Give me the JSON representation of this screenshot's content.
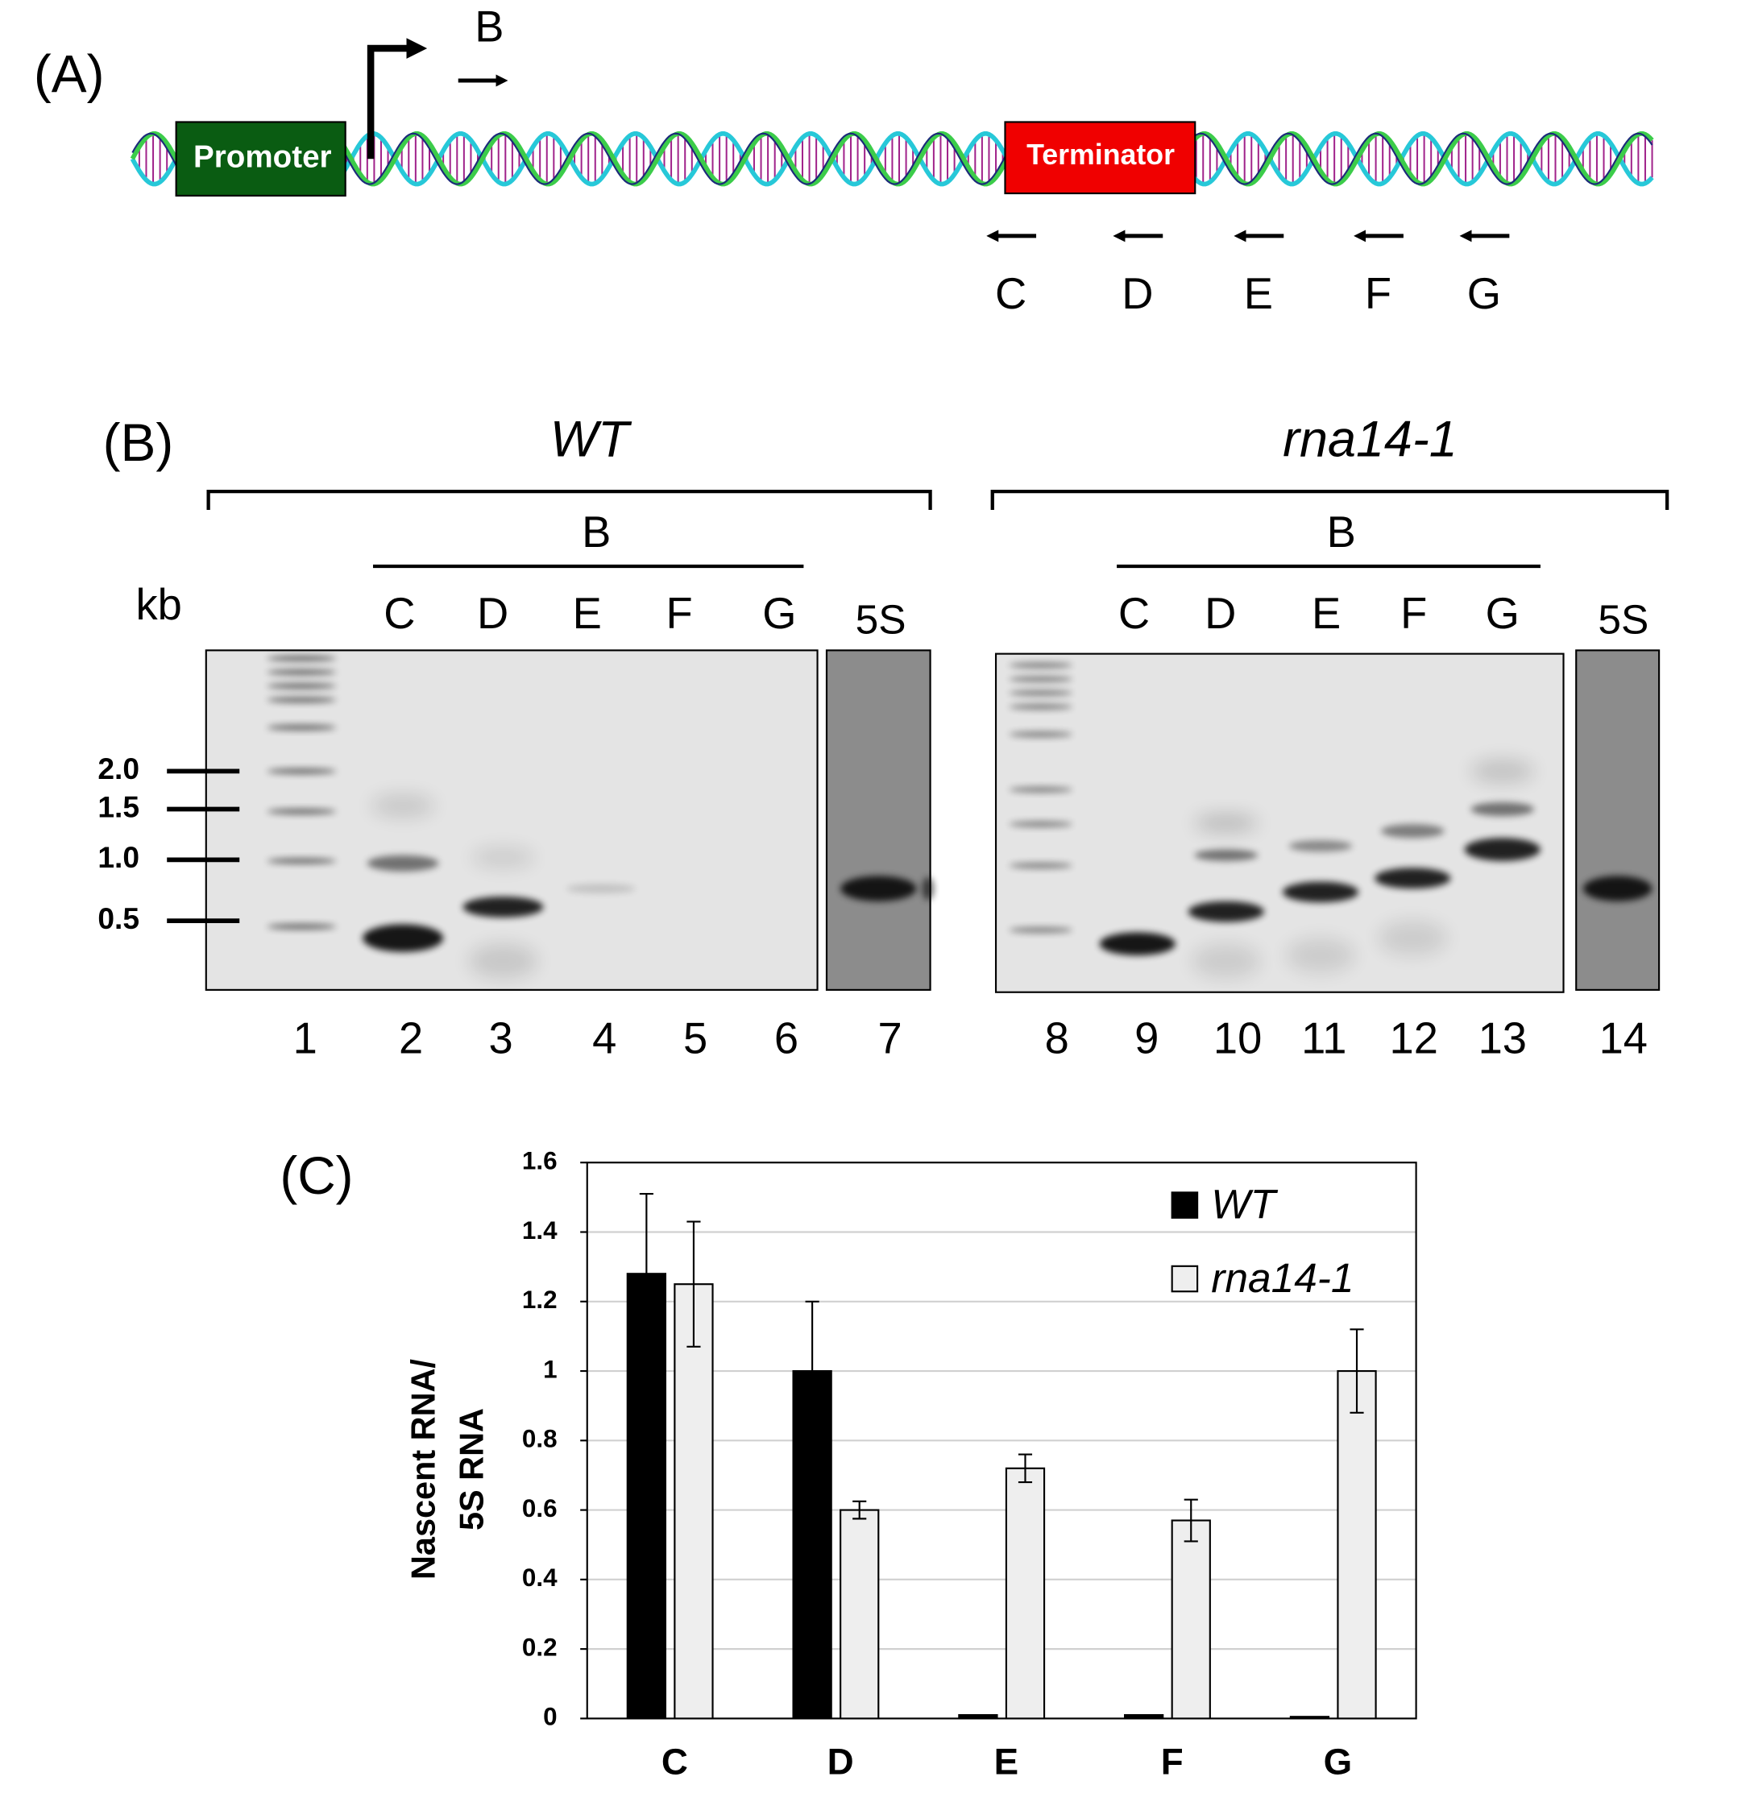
{
  "panel_a": {
    "label": "(A)",
    "promoter": "Promoter",
    "terminator": "Terminator",
    "primer_forward": "B",
    "primers_reverse": [
      "C",
      "D",
      "E",
      "F",
      "G"
    ]
  },
  "panel_b": {
    "label": "(B)",
    "size_unit": "kb",
    "sizes": [
      "2.0",
      "1.5",
      "1.0",
      "0.5"
    ],
    "groups": [
      {
        "name": "WT",
        "primer_header": "B",
        "primers": [
          "C",
          "D",
          "E",
          "F",
          "G"
        ],
        "control": "5S"
      },
      {
        "name": "rna14-1",
        "primer_header": "B",
        "primers": [
          "C",
          "D",
          "E",
          "F",
          "G"
        ],
        "control": "5S"
      }
    ],
    "lanes": [
      "1",
      "2",
      "3",
      "4",
      "5",
      "6",
      "7",
      "8",
      "9",
      "10",
      "11",
      "12",
      "13",
      "14"
    ]
  },
  "chart_data": {
    "type": "bar",
    "label": "(C)",
    "ylabel_lines": [
      "Nascent RNA/",
      "5S RNA"
    ],
    "categories": [
      "C",
      "D",
      "E",
      "F",
      "G"
    ],
    "series": [
      {
        "name": "WT",
        "color": "#000000",
        "values": [
          1.28,
          1.0,
          0.01,
          0.01,
          0.005
        ],
        "errors": [
          0.23,
          0.2,
          null,
          null,
          null
        ]
      },
      {
        "name": "rna14-1",
        "color": "#eeeeee",
        "values": [
          1.25,
          0.6,
          0.72,
          0.57,
          1.0
        ],
        "errors": [
          0.18,
          0.025,
          0.04,
          0.06,
          0.12
        ]
      }
    ],
    "ylim": [
      0,
      1.6
    ],
    "yticks": [
      0,
      0.2,
      0.4,
      0.6,
      0.8,
      1,
      1.2,
      1.4,
      1.6
    ],
    "grid": true,
    "legend": "upper right"
  }
}
